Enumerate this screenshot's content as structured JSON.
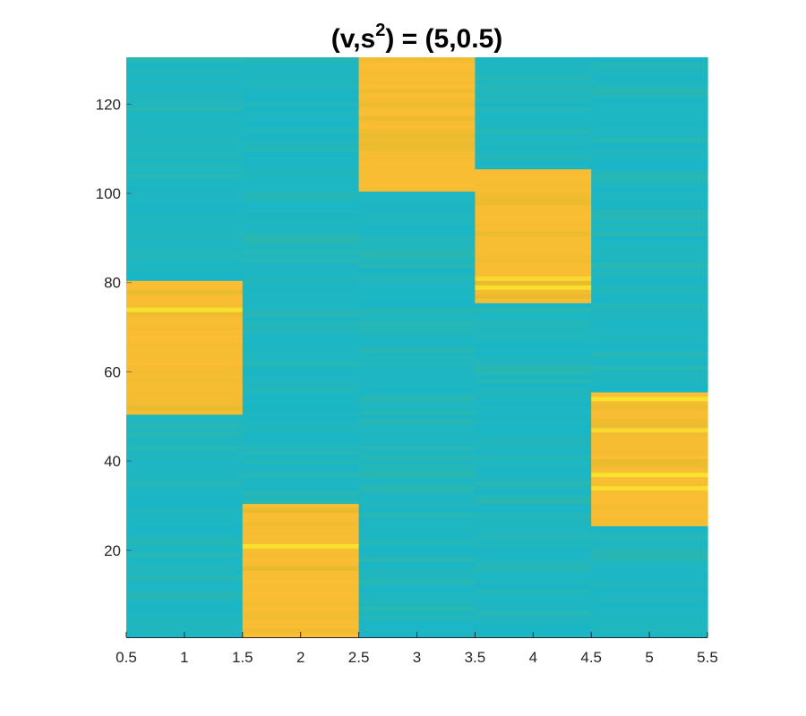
{
  "chart_data": {
    "type": "heatmap",
    "title": {
      "prefix": "(v,s",
      "superscript": "2",
      "suffix": ") = (5,0.5)"
    },
    "xlim": [
      0.5,
      5.5
    ],
    "ylim": [
      0.5,
      130.5
    ],
    "x_ticks": [
      0.5,
      1,
      1.5,
      2,
      2.5,
      3,
      3.5,
      4,
      4.5,
      5,
      5.5
    ],
    "x_tick_labels": [
      "0.5",
      "1",
      "1.5",
      "2",
      "2.5",
      "3",
      "3.5",
      "4",
      "4.5",
      "5",
      "5.5"
    ],
    "y_ticks": [
      20,
      40,
      60,
      80,
      100,
      120
    ],
    "y_tick_labels": [
      "20",
      "40",
      "60",
      "80",
      "100",
      "120"
    ],
    "columns": [
      1,
      2,
      3,
      4,
      5
    ],
    "rows": 130,
    "high_blocks": [
      {
        "column": 1,
        "row_start": 51,
        "row_end": 80
      },
      {
        "column": 2,
        "row_start": 1,
        "row_end": 30
      },
      {
        "column": 3,
        "row_start": 101,
        "row_end": 130
      },
      {
        "column": 4,
        "row_start": 76,
        "row_end": 105
      },
      {
        "column": 5,
        "row_start": 26,
        "row_end": 55
      }
    ],
    "colors": {
      "low": "#1ab6c7",
      "low_alt": "#2ab7b0",
      "high": "#fbbd34",
      "high_alt": "#e8bb2e",
      "peak": "#f7e52b"
    },
    "grid": false,
    "legend": "none"
  }
}
